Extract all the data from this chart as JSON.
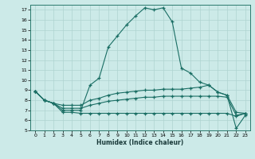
{
  "xlabel": "Humidex (Indice chaleur)",
  "xlim": [
    -0.5,
    23.5
  ],
  "ylim": [
    5,
    17.5
  ],
  "yticks": [
    5,
    6,
    7,
    8,
    9,
    10,
    11,
    12,
    13,
    14,
    15,
    16,
    17
  ],
  "xticks": [
    0,
    1,
    2,
    3,
    4,
    5,
    6,
    7,
    8,
    9,
    10,
    11,
    12,
    13,
    14,
    15,
    16,
    17,
    18,
    19,
    20,
    21,
    22,
    23
  ],
  "bg_color": "#cceae8",
  "line_color": "#1a6e64",
  "grid_color": "#afd4d0",
  "line1_y": [
    8.9,
    8.0,
    7.7,
    7.0,
    7.0,
    7.0,
    9.5,
    10.2,
    13.3,
    14.4,
    15.5,
    16.4,
    17.2,
    17.0,
    17.2,
    15.8,
    11.2,
    10.7,
    9.8,
    9.5,
    8.8,
    8.5,
    5.2,
    6.5
  ],
  "line2_y": [
    8.9,
    8.0,
    7.7,
    7.5,
    7.5,
    7.5,
    8.0,
    8.2,
    8.5,
    8.7,
    8.8,
    8.9,
    9.0,
    9.0,
    9.1,
    9.1,
    9.1,
    9.2,
    9.3,
    9.5,
    8.8,
    8.5,
    6.8,
    6.7
  ],
  "line3_y": [
    8.9,
    8.0,
    7.7,
    7.2,
    7.2,
    7.2,
    7.5,
    7.7,
    7.9,
    8.0,
    8.1,
    8.2,
    8.3,
    8.3,
    8.4,
    8.4,
    8.4,
    8.4,
    8.4,
    8.4,
    8.4,
    8.3,
    6.5,
    6.7
  ],
  "line4_y": [
    8.9,
    8.0,
    7.7,
    6.8,
    6.8,
    6.7,
    6.7,
    6.7,
    6.7,
    6.7,
    6.7,
    6.7,
    6.7,
    6.7,
    6.7,
    6.7,
    6.7,
    6.7,
    6.7,
    6.7,
    6.7,
    6.7,
    6.4,
    6.7
  ]
}
